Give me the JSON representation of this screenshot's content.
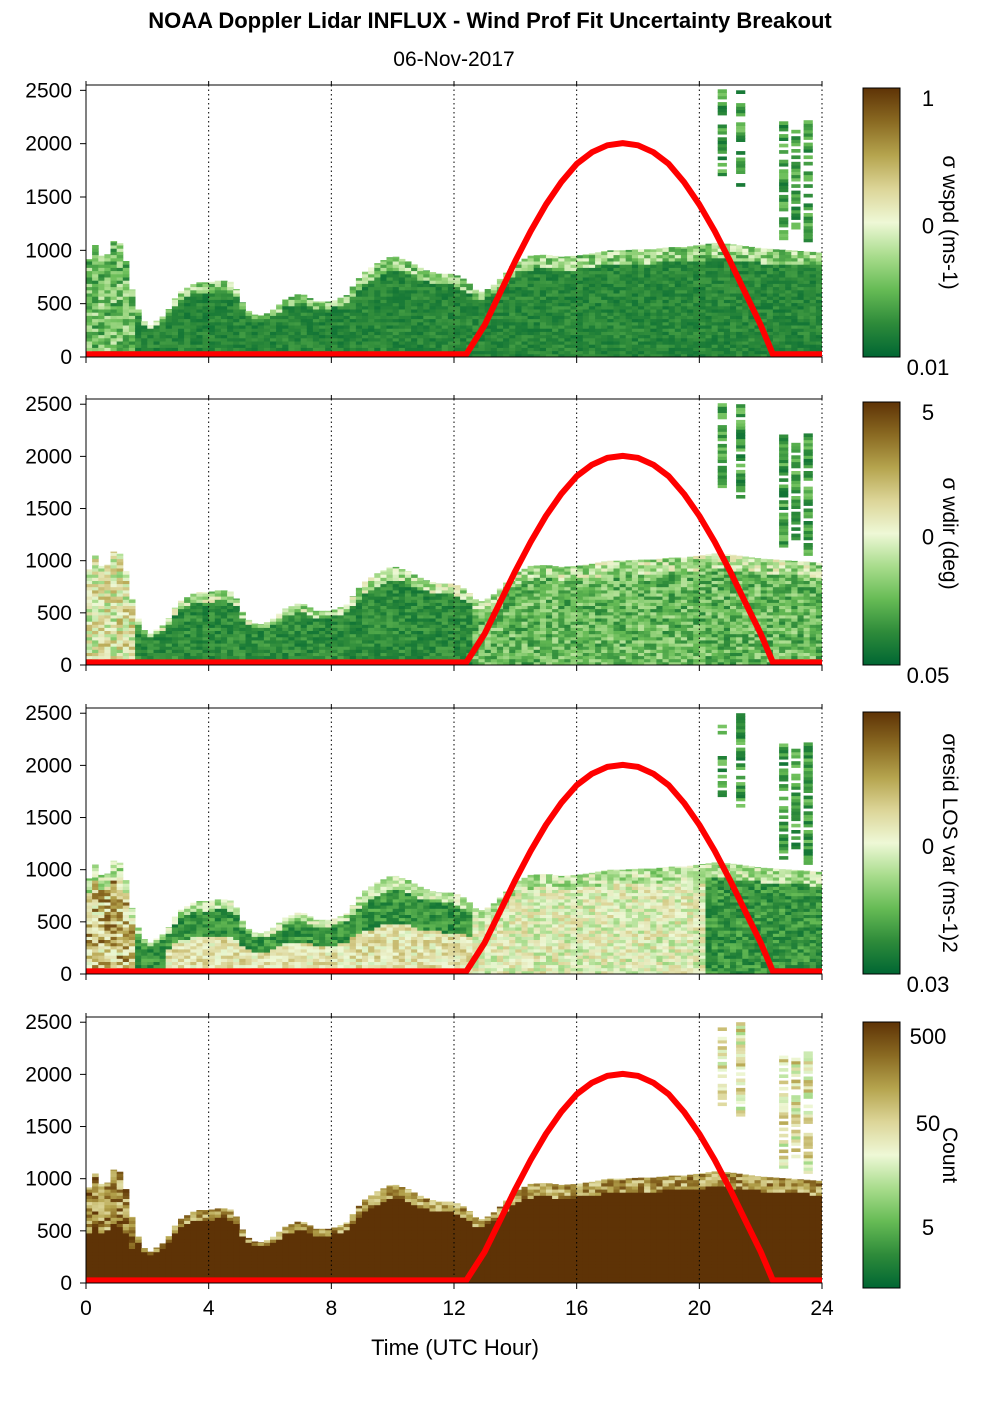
{
  "title": "NOAA Doppler Lidar INFLUX - Wind Prof Fit Uncertainty Breakout",
  "subtitle": "06-Nov-2017",
  "chart_data": {
    "type": "heatmap",
    "xlabel": "Time (UTC Hour)",
    "xlim": [
      0,
      24
    ],
    "xticks": [
      "0",
      "4",
      "8",
      "12",
      "16",
      "20",
      "24"
    ],
    "xtick_values": [
      0,
      4,
      8,
      12,
      16,
      20,
      24
    ],
    "ylim": [
      0,
      2550
    ],
    "yticks": [
      "0",
      "500",
      "1000",
      "1500",
      "2000",
      "2500"
    ],
    "ytick_values": [
      0,
      500,
      1000,
      1500,
      2000,
      2500
    ],
    "grid": "vertical dotted at 4, 8, 12, 16, 20, 24",
    "colormap": [
      "#006633",
      "#2e8b3a",
      "#66bb55",
      "#a8dc8c",
      "#eef8d6",
      "#dcd598",
      "#b5a44e",
      "#8a6a22",
      "#5e3306"
    ],
    "boundary_top_profile": {
      "hours": [
        0,
        0.3,
        0.6,
        1.0,
        1.3,
        1.6,
        2.0,
        2.6,
        3.0,
        3.3,
        3.6,
        4.0,
        4.4,
        4.8,
        5.2,
        5.6,
        6.0,
        6.5,
        7.0,
        7.5,
        8.0,
        8.5,
        9.0,
        9.5,
        10.0,
        10.5,
        11.0,
        11.5,
        12.0,
        12.4,
        12.8,
        13.2,
        13.6,
        14.0,
        14.5,
        15.0,
        15.5,
        16.0,
        16.5,
        17.0,
        17.5,
        18.0,
        18.5,
        19.0,
        19.5,
        20.0,
        20.5,
        21.0,
        21.5,
        22.0,
        22.5,
        23.0,
        23.5,
        23.9
      ],
      "heights_m": [
        850,
        1050,
        900,
        1150,
        900,
        500,
        280,
        400,
        600,
        650,
        700,
        700,
        720,
        700,
        450,
        380,
        420,
        540,
        600,
        520,
        520,
        580,
        780,
        880,
        950,
        900,
        820,
        780,
        780,
        720,
        600,
        650,
        760,
        880,
        950,
        960,
        940,
        950,
        970,
        1000,
        1000,
        1010,
        1010,
        1030,
        1030,
        1050,
        1070,
        1060,
        1040,
        1020,
        1010,
        1000,
        990,
        980
      ]
    },
    "sun_elevation_curve": {
      "description": "red curve",
      "hours": [
        0,
        12.4,
        13.0,
        13.5,
        14.0,
        14.5,
        15.0,
        15.5,
        16.0,
        16.5,
        17.0,
        17.5,
        18.0,
        18.5,
        19.0,
        19.5,
        20.0,
        20.5,
        21.0,
        21.5,
        22.0,
        22.4,
        24
      ],
      "heights_m": [
        25,
        25,
        300,
        600,
        900,
        1180,
        1430,
        1640,
        1810,
        1920,
        1985,
        2005,
        1985,
        1920,
        1810,
        1640,
        1430,
        1180,
        900,
        600,
        300,
        25,
        25
      ]
    },
    "panels": [
      {
        "id": "wspd",
        "colorbar_title": "σ wspd (ms-1)",
        "colorbar_ticks": [
          "1",
          "0",
          "0.01"
        ],
        "colorbar_scale": "log",
        "field": "sigma_wspd"
      },
      {
        "id": "wdir",
        "colorbar_title": "σ wdir (deg)",
        "colorbar_ticks": [
          "5",
          "0",
          "0.05"
        ],
        "colorbar_scale": "log",
        "field": "sigma_wdir"
      },
      {
        "id": "resid",
        "colorbar_title": "σresid LOS var (ms-1)2",
        "colorbar_ticks": [
          "0",
          "0.03"
        ],
        "colorbar_scale": "log",
        "field": "sigma_resid"
      },
      {
        "id": "count",
        "colorbar_title": "Count",
        "colorbar_ticks": [
          "500",
          "50",
          "5"
        ],
        "colorbar_scale": "log",
        "field": "count"
      }
    ]
  }
}
